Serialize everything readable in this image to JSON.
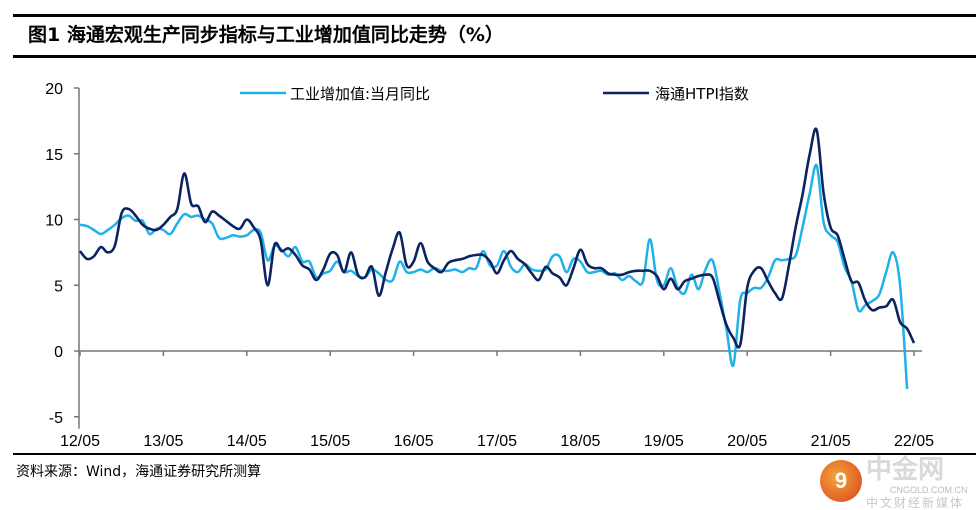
{
  "title": "图1   海通宏观生产同步指标与工业增加值同比走势（%）",
  "source": "资料来源：Wind，海通证券研究所测算",
  "watermark": {
    "logo_text": "中金网",
    "url": "CNGOLD.COM.CN",
    "tagline": "中文财经新媒体"
  },
  "colors": {
    "iva": "#1fb1ea",
    "htpi": "#0b2360"
  },
  "chart_data": {
    "type": "line",
    "title": "海通宏观生产同步指标与工业增加值同比走势（%）",
    "xlabel": "",
    "ylabel": "%",
    "ylim": [
      -5,
      20
    ],
    "yticks": [
      "20",
      "15",
      "10",
      "5",
      "0",
      "-5"
    ],
    "ytick_values": [
      20,
      15,
      10,
      5,
      0,
      -5
    ],
    "xticks": [
      "12/05",
      "13/05",
      "14/05",
      "15/05",
      "16/05",
      "17/05",
      "18/05",
      "19/05",
      "20/05",
      "21/05",
      "22/05"
    ],
    "x_start": "2012/05",
    "x_frequency": "monthly",
    "legend": "top-center",
    "grid": false,
    "series": [
      {
        "name": "工业增加值:当月同比",
        "color_key": "iva",
        "values": [
          9.6,
          9.5,
          9.2,
          8.9,
          9.2,
          9.6,
          10.1,
          10.3,
          9.9,
          9.9,
          8.9,
          9.3,
          9.2,
          8.9,
          9.7,
          10.4,
          10.2,
          10.3,
          10.0,
          9.7,
          8.6,
          8.6,
          8.8,
          8.7,
          8.8,
          9.2,
          9.0,
          6.9,
          8.0,
          7.7,
          7.2,
          7.9,
          6.8,
          6.8,
          5.6,
          5.9,
          6.1,
          6.8,
          6.0,
          6.1,
          5.7,
          5.6,
          6.2,
          5.9,
          5.4,
          5.4,
          6.8,
          6.0,
          6.0,
          6.2,
          6.0,
          6.3,
          6.1,
          6.1,
          6.2,
          6.0,
          6.3,
          6.3,
          7.6,
          6.5,
          6.5,
          7.6,
          6.4,
          6.0,
          6.6,
          6.2,
          6.1,
          6.2,
          7.2,
          7.2,
          6.0,
          7.0,
          6.8,
          6.0,
          6.0,
          6.1,
          5.8,
          5.9,
          5.4,
          5.7,
          5.3,
          5.3,
          8.5,
          5.4,
          5.0,
          6.3,
          4.8,
          4.4,
          5.8,
          4.7,
          6.2,
          6.9,
          4.5,
          1.7,
          -1.1,
          3.9,
          4.4,
          4.8,
          4.8,
          5.6,
          6.9,
          6.9,
          7.0,
          7.3,
          9.5,
          12.0,
          14.1,
          9.8,
          8.8,
          8.3,
          6.4,
          5.3,
          3.1,
          3.5,
          3.8,
          4.3,
          6.0,
          7.5,
          5.0,
          -2.9,
          null
        ]
      },
      {
        "name": "海通HTPI指数",
        "color_key": "htpi",
        "values": [
          7.6,
          7.0,
          7.2,
          7.9,
          7.5,
          8.0,
          10.5,
          10.8,
          10.3,
          9.6,
          9.3,
          9.2,
          9.6,
          10.2,
          10.8,
          13.5,
          11.2,
          11.0,
          9.8,
          10.6,
          10.3,
          9.9,
          9.5,
          9.3,
          10.0,
          9.4,
          8.4,
          5.0,
          8.1,
          7.6,
          7.8,
          7.3,
          6.5,
          6.2,
          5.4,
          6.2,
          7.4,
          7.3,
          6.0,
          7.5,
          5.8,
          5.6,
          6.4,
          4.2,
          6.0,
          7.8,
          9.0,
          6.5,
          6.8,
          8.2,
          6.8,
          6.3,
          6.0,
          6.7,
          6.9,
          7.0,
          7.2,
          7.3,
          7.3,
          6.8,
          5.9,
          6.9,
          7.6,
          7.0,
          6.6,
          5.9,
          5.4,
          6.4,
          5.9,
          5.6,
          5.0,
          6.3,
          7.7,
          6.6,
          6.3,
          6.3,
          5.9,
          5.8,
          5.8,
          6.0,
          6.1,
          6.1,
          6.1,
          5.7,
          4.7,
          5.5,
          4.7,
          5.3,
          5.5,
          5.7,
          5.8,
          5.6,
          3.8,
          2.0,
          1.0,
          0.5,
          4.8,
          6.1,
          6.3,
          5.3,
          4.4,
          4.0,
          6.5,
          9.5,
          12.0,
          15.0,
          16.8,
          12.0,
          9.4,
          8.8,
          7.0,
          5.3,
          5.2,
          3.8,
          3.1,
          3.3,
          3.4,
          3.9,
          2.2,
          1.7,
          0.6
        ]
      }
    ]
  }
}
